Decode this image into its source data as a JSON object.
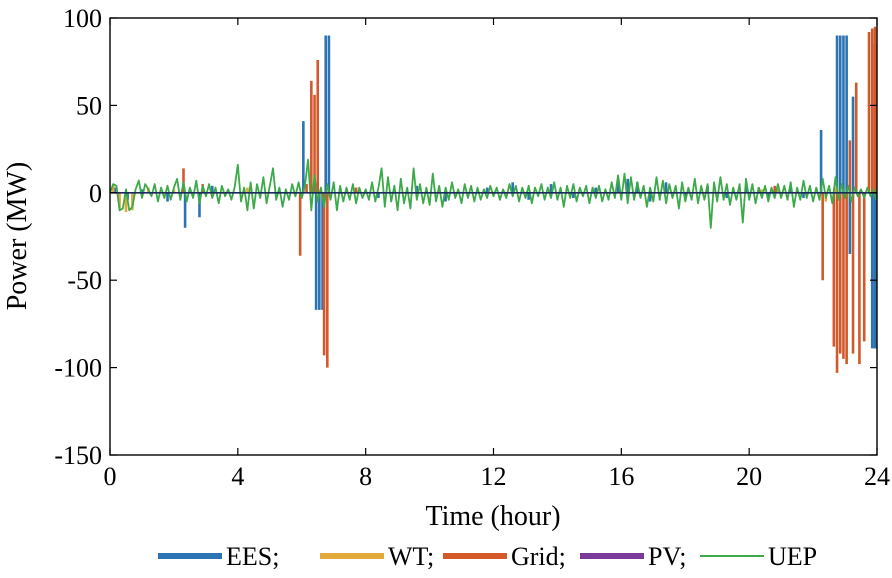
{
  "chart_data": {
    "type": "bar",
    "xlabel": "Time (hour)",
    "ylabel": "Power (MW)",
    "xlim": [
      0,
      24
    ],
    "ylim": [
      -150,
      100
    ],
    "xticks": [
      0,
      4,
      8,
      12,
      16,
      20,
      24
    ],
    "yticks": [
      100,
      50,
      0,
      -50,
      -100,
      -150
    ],
    "grid": false,
    "legend_position": "bottom",
    "colors": {
      "EES": "#2b73b3",
      "WT": "#e0a93a",
      "Grid": "#d4592a",
      "PV": "#7b3a9a",
      "UEP": "#3daa4a"
    },
    "legend": [
      {
        "label": "EES;",
        "series": "EES",
        "style": "bar"
      },
      {
        "label": "WT;",
        "series": "WT",
        "style": "bar"
      },
      {
        "label": "Grid;",
        "series": "Grid",
        "style": "bar"
      },
      {
        "label": "PV;",
        "series": "PV",
        "style": "bar"
      },
      {
        "label": "UEP",
        "series": "UEP",
        "style": "line"
      }
    ],
    "series": [
      {
        "name": "EES",
        "points": [
          [
            0.15,
            3
          ],
          [
            0.55,
            -4
          ],
          [
            1.0,
            2
          ],
          [
            1.8,
            -5
          ],
          [
            2.35,
            -20
          ],
          [
            2.8,
            -14
          ],
          [
            3.2,
            4
          ],
          [
            6.05,
            41
          ],
          [
            6.45,
            -67
          ],
          [
            6.55,
            -67
          ],
          [
            6.65,
            -67
          ],
          [
            6.75,
            90
          ],
          [
            6.85,
            90
          ],
          [
            8.4,
            -3
          ],
          [
            9.6,
            4
          ],
          [
            10.5,
            -5
          ],
          [
            11.8,
            3
          ],
          [
            12.6,
            6
          ],
          [
            13.1,
            -4
          ],
          [
            13.8,
            5
          ],
          [
            14.5,
            -3
          ],
          [
            15.2,
            3
          ],
          [
            15.9,
            8
          ],
          [
            16.2,
            8
          ],
          [
            16.5,
            6
          ],
          [
            16.9,
            -5
          ],
          [
            17.4,
            6
          ],
          [
            18.0,
            -4
          ],
          [
            18.7,
            4
          ],
          [
            19.3,
            -3
          ],
          [
            19.9,
            4
          ],
          [
            20.6,
            -3
          ],
          [
            21.3,
            3
          ],
          [
            21.7,
            -3
          ],
          [
            22.25,
            36
          ],
          [
            22.75,
            90
          ],
          [
            22.85,
            90
          ],
          [
            22.95,
            90
          ],
          [
            23.05,
            90
          ],
          [
            23.15,
            -35
          ],
          [
            23.25,
            55
          ],
          [
            23.85,
            -89
          ],
          [
            23.95,
            -89
          ],
          [
            24.05,
            -89
          ]
        ]
      },
      {
        "name": "WT",
        "points": [
          [
            0.1,
            5
          ],
          [
            0.3,
            -9
          ],
          [
            0.5,
            -11
          ],
          [
            0.7,
            -10
          ],
          [
            1.2,
            3
          ],
          [
            2.0,
            2
          ],
          [
            4.3,
            3
          ],
          [
            6.4,
            5
          ],
          [
            20.4,
            2
          ],
          [
            20.9,
            2
          ],
          [
            22.4,
            -5
          ],
          [
            22.7,
            3
          ]
        ]
      },
      {
        "name": "Grid",
        "points": [
          [
            2.3,
            14
          ],
          [
            2.9,
            5
          ],
          [
            5.95,
            -36
          ],
          [
            6.15,
            5
          ],
          [
            6.3,
            64
          ],
          [
            6.4,
            56
          ],
          [
            6.5,
            76
          ],
          [
            6.7,
            -93
          ],
          [
            6.8,
            -100
          ],
          [
            7.7,
            3
          ],
          [
            20.3,
            3
          ],
          [
            20.8,
            4
          ],
          [
            22.3,
            -50
          ],
          [
            22.65,
            -88
          ],
          [
            22.75,
            -103
          ],
          [
            22.85,
            -92
          ],
          [
            22.95,
            -95
          ],
          [
            23.05,
            -98
          ],
          [
            23.15,
            30
          ],
          [
            23.25,
            -92
          ],
          [
            23.35,
            63
          ],
          [
            23.45,
            -98
          ],
          [
            23.6,
            -85
          ],
          [
            23.75,
            92
          ],
          [
            23.85,
            94
          ],
          [
            23.95,
            95
          ],
          [
            24.05,
            85
          ]
        ]
      },
      {
        "name": "PV",
        "points": []
      },
      {
        "name": "UEP",
        "points": [
          [
            0.0,
            0
          ],
          [
            0.1,
            5
          ],
          [
            0.2,
            4
          ],
          [
            0.3,
            -10
          ],
          [
            0.4,
            -9
          ],
          [
            0.5,
            2
          ],
          [
            0.6,
            -10
          ],
          [
            0.7,
            -8
          ],
          [
            0.8,
            2
          ],
          [
            0.9,
            7
          ],
          [
            1.0,
            -3
          ],
          [
            1.1,
            5
          ],
          [
            1.2,
            2
          ],
          [
            1.3,
            -2
          ],
          [
            1.4,
            5
          ],
          [
            1.5,
            -5
          ],
          [
            1.6,
            3
          ],
          [
            1.7,
            -3
          ],
          [
            1.8,
            4
          ],
          [
            1.9,
            -4
          ],
          [
            2.0,
            3
          ],
          [
            2.1,
            8
          ],
          [
            2.2,
            -4
          ],
          [
            2.3,
            6
          ],
          [
            2.4,
            -5
          ],
          [
            2.5,
            3
          ],
          [
            2.6,
            -3
          ],
          [
            2.7,
            7
          ],
          [
            2.8,
            -6
          ],
          [
            2.9,
            4
          ],
          [
            3.0,
            -2
          ],
          [
            3.1,
            5
          ],
          [
            3.2,
            -3
          ],
          [
            3.3,
            3
          ],
          [
            3.4,
            -6
          ],
          [
            3.5,
            4
          ],
          [
            3.6,
            -2
          ],
          [
            3.7,
            2
          ],
          [
            3.8,
            -4
          ],
          [
            3.9,
            3
          ],
          [
            4.0,
            16
          ],
          [
            4.1,
            -5
          ],
          [
            4.2,
            3
          ],
          [
            4.3,
            -10
          ],
          [
            4.4,
            6
          ],
          [
            4.5,
            -9
          ],
          [
            4.6,
            5
          ],
          [
            4.7,
            -3
          ],
          [
            4.8,
            9
          ],
          [
            4.9,
            -6
          ],
          [
            5.0,
            4
          ],
          [
            5.1,
            14
          ],
          [
            5.2,
            -4
          ],
          [
            5.3,
            3
          ],
          [
            5.4,
            -8
          ],
          [
            5.5,
            2
          ],
          [
            5.6,
            -4
          ],
          [
            5.7,
            5
          ],
          [
            5.8,
            -2
          ],
          [
            5.9,
            6
          ],
          [
            6.0,
            -3
          ],
          [
            6.1,
            4
          ],
          [
            6.2,
            19
          ],
          [
            6.3,
            -10
          ],
          [
            6.4,
            10
          ],
          [
            6.5,
            -5
          ],
          [
            6.6,
            3
          ],
          [
            6.7,
            -8
          ],
          [
            6.8,
            5
          ],
          [
            6.9,
            -4
          ],
          [
            7.0,
            6
          ],
          [
            7.1,
            -10
          ],
          [
            7.2,
            4
          ],
          [
            7.3,
            -5
          ],
          [
            7.4,
            3
          ],
          [
            7.5,
            -4
          ],
          [
            7.6,
            5
          ],
          [
            7.7,
            -6
          ],
          [
            7.8,
            3
          ],
          [
            7.9,
            -3
          ],
          [
            8.0,
            2
          ],
          [
            8.1,
            -4
          ],
          [
            8.2,
            6
          ],
          [
            8.3,
            -5
          ],
          [
            8.4,
            3
          ],
          [
            8.5,
            14
          ],
          [
            8.6,
            -8
          ],
          [
            8.7,
            9
          ],
          [
            8.8,
            -5
          ],
          [
            8.9,
            4
          ],
          [
            9.0,
            -10
          ],
          [
            9.1,
            8
          ],
          [
            9.2,
            -6
          ],
          [
            9.3,
            3
          ],
          [
            9.4,
            -9
          ],
          [
            9.5,
            14
          ],
          [
            9.6,
            -4
          ],
          [
            9.7,
            5
          ],
          [
            9.8,
            -6
          ],
          [
            9.9,
            3
          ],
          [
            10.0,
            -7
          ],
          [
            10.1,
            11
          ],
          [
            10.2,
            -5
          ],
          [
            10.3,
            4
          ],
          [
            10.4,
            -8
          ],
          [
            10.5,
            3
          ],
          [
            10.6,
            -4
          ],
          [
            10.7,
            6
          ],
          [
            10.8,
            -3
          ],
          [
            10.9,
            2
          ],
          [
            11.0,
            -6
          ],
          [
            11.1,
            5
          ],
          [
            11.2,
            -3
          ],
          [
            11.3,
            4
          ],
          [
            11.4,
            -5
          ],
          [
            11.5,
            3
          ],
          [
            11.6,
            -4
          ],
          [
            11.7,
            2
          ],
          [
            11.8,
            -3
          ],
          [
            11.9,
            4
          ],
          [
            12.0,
            -2
          ],
          [
            12.1,
            3
          ],
          [
            12.2,
            -4
          ],
          [
            12.3,
            2
          ],
          [
            12.4,
            -3
          ],
          [
            12.5,
            5
          ],
          [
            12.6,
            -2
          ],
          [
            12.7,
            4
          ],
          [
            12.8,
            -5
          ],
          [
            12.9,
            3
          ],
          [
            13.0,
            -3
          ],
          [
            13.1,
            4
          ],
          [
            13.2,
            -6
          ],
          [
            13.3,
            3
          ],
          [
            13.4,
            -2
          ],
          [
            13.5,
            5
          ],
          [
            13.6,
            -4
          ],
          [
            13.7,
            3
          ],
          [
            13.8,
            -3
          ],
          [
            13.9,
            6
          ],
          [
            14.0,
            -4
          ],
          [
            14.1,
            3
          ],
          [
            14.2,
            -8
          ],
          [
            14.3,
            4
          ],
          [
            14.4,
            -3
          ],
          [
            14.5,
            5
          ],
          [
            14.6,
            -5
          ],
          [
            14.7,
            3
          ],
          [
            14.8,
            -2
          ],
          [
            14.9,
            4
          ],
          [
            15.0,
            -6
          ],
          [
            15.1,
            3
          ],
          [
            15.2,
            -3
          ],
          [
            15.3,
            4
          ],
          [
            15.4,
            -5
          ],
          [
            15.5,
            2
          ],
          [
            15.6,
            -4
          ],
          [
            15.7,
            6
          ],
          [
            15.8,
            -3
          ],
          [
            15.9,
            10
          ],
          [
            16.0,
            -4
          ],
          [
            16.1,
            11
          ],
          [
            16.2,
            -6
          ],
          [
            16.3,
            9
          ],
          [
            16.4,
            -4
          ],
          [
            16.5,
            6
          ],
          [
            16.6,
            -3
          ],
          [
            16.7,
            4
          ],
          [
            16.8,
            -8
          ],
          [
            16.9,
            3
          ],
          [
            17.0,
            -5
          ],
          [
            17.1,
            9
          ],
          [
            17.2,
            -4
          ],
          [
            17.3,
            7
          ],
          [
            17.4,
            -6
          ],
          [
            17.5,
            5
          ],
          [
            17.6,
            -3
          ],
          [
            17.7,
            4
          ],
          [
            17.8,
            -9
          ],
          [
            17.9,
            6
          ],
          [
            18.0,
            -5
          ],
          [
            18.1,
            3
          ],
          [
            18.2,
            -4
          ],
          [
            18.3,
            8
          ],
          [
            18.4,
            -6
          ],
          [
            18.5,
            4
          ],
          [
            18.6,
            -4
          ],
          [
            18.7,
            5
          ],
          [
            18.8,
            -20
          ],
          [
            18.9,
            6
          ],
          [
            19.0,
            -5
          ],
          [
            19.1,
            9
          ],
          [
            19.2,
            -4
          ],
          [
            19.3,
            5
          ],
          [
            19.4,
            -7
          ],
          [
            19.5,
            3
          ],
          [
            19.6,
            -4
          ],
          [
            19.7,
            5
          ],
          [
            19.8,
            -17
          ],
          [
            19.9,
            8
          ],
          [
            20.0,
            -4
          ],
          [
            20.1,
            5
          ],
          [
            20.2,
            -6
          ],
          [
            20.3,
            3
          ],
          [
            20.4,
            -3
          ],
          [
            20.5,
            4
          ],
          [
            20.6,
            -5
          ],
          [
            20.7,
            3
          ],
          [
            20.8,
            -3
          ],
          [
            20.9,
            5
          ],
          [
            21.0,
            -3
          ],
          [
            21.1,
            4
          ],
          [
            21.2,
            -4
          ],
          [
            21.3,
            6
          ],
          [
            21.4,
            -8
          ],
          [
            21.5,
            3
          ],
          [
            21.6,
            -4
          ],
          [
            21.7,
            7
          ],
          [
            21.8,
            -3
          ],
          [
            21.9,
            4
          ],
          [
            22.0,
            -5
          ],
          [
            22.1,
            3
          ],
          [
            22.2,
            -4
          ],
          [
            22.3,
            8
          ],
          [
            22.4,
            -3
          ],
          [
            22.5,
            4
          ],
          [
            22.6,
            -6
          ],
          [
            22.7,
            9
          ],
          [
            22.8,
            -4
          ],
          [
            22.9,
            5
          ],
          [
            23.0,
            -3
          ],
          [
            23.1,
            4
          ],
          [
            23.2,
            -5
          ],
          [
            23.3,
            3
          ],
          [
            23.4,
            -2
          ],
          [
            23.5,
            2
          ],
          [
            23.6,
            -3
          ],
          [
            23.7,
            3
          ],
          [
            23.8,
            -2
          ],
          [
            23.9,
            2
          ],
          [
            24.0,
            -4
          ]
        ]
      }
    ]
  }
}
